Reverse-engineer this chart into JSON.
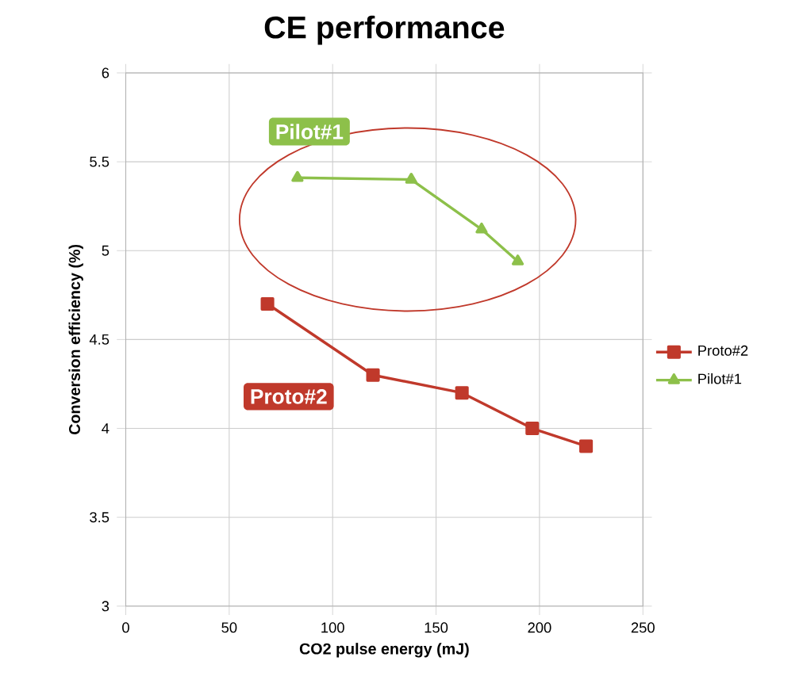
{
  "chart_data": {
    "type": "line",
    "title": "CE performance",
    "xlabel": "CO2 pulse energy (mJ)",
    "ylabel": "Conversion efficiency (%)",
    "xlim": [
      0,
      250
    ],
    "xticks": [
      0,
      50,
      100,
      150,
      200,
      250
    ],
    "ylim": [
      3,
      6
    ],
    "yticks": [
      3,
      3.5,
      4,
      4.5,
      5,
      5.5,
      6
    ],
    "grid": true,
    "legend": "right",
    "line_style": "solid",
    "series": [
      {
        "name": "Proto#2",
        "color": "#c0392b",
        "marker": "square",
        "x": [
          68.5,
          119.5,
          162.5,
          196.5,
          222.5
        ],
        "values": [
          4.7,
          4.3,
          4.2,
          4.0,
          3.9
        ]
      },
      {
        "name": "Pilot#1",
        "color": "#8dc04a",
        "marker": "triangle",
        "x": [
          83,
          138,
          172,
          189.5
        ],
        "values": [
          5.41,
          5.4,
          5.12,
          4.94
        ]
      }
    ],
    "annotations": [
      "Pilot#1",
      "Proto#2"
    ]
  }
}
